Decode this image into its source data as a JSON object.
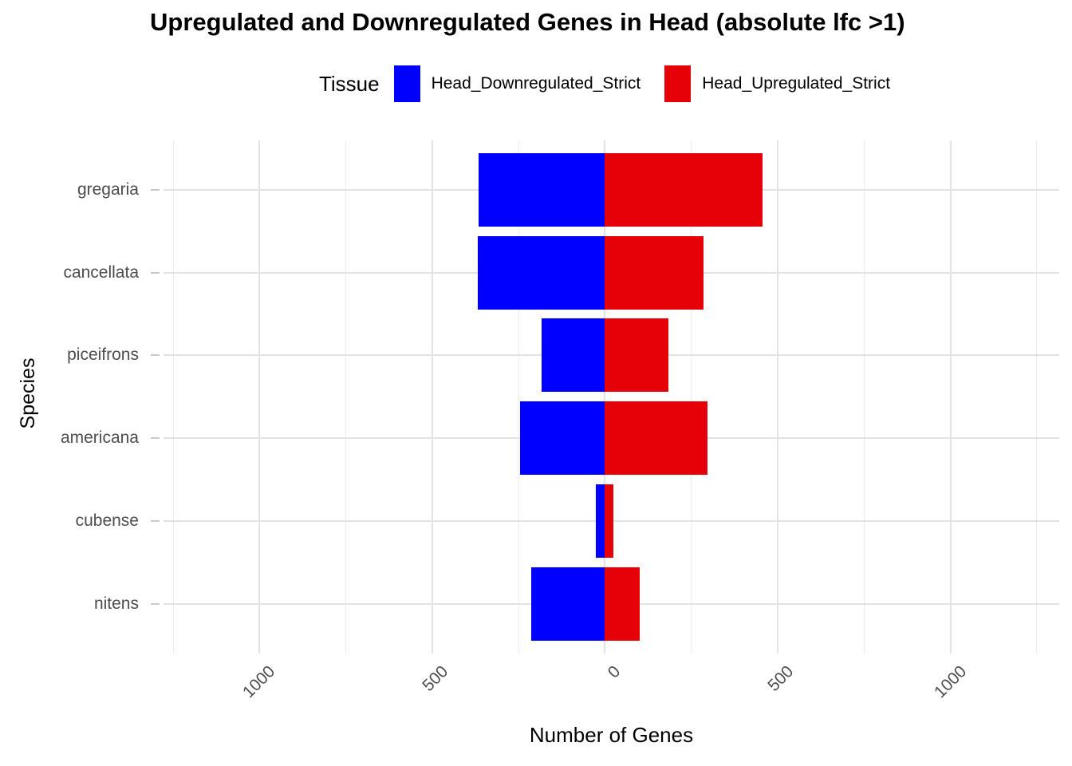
{
  "title": "Upregulated and Downregulated Genes in Head (absolute lfc >1)",
  "legend": {
    "title": "Tissue",
    "items": [
      {
        "label": "Head_Downregulated_Strict",
        "color": "#0000FF"
      },
      {
        "label": "Head_Upregulated_Strict",
        "color": "#E60008"
      }
    ]
  },
  "chart_data": {
    "type": "bar",
    "variant": "horizontal-diverging",
    "title": "Upregulated and Downregulated Genes in Head (absolute lfc >1)",
    "xlabel": "Number of Genes",
    "ylabel": "Species",
    "categories": [
      "gregaria",
      "cancellata",
      "piceifrons",
      "americana",
      "cubense",
      "nitens"
    ],
    "series": [
      {
        "name": "Head_Downregulated_Strict",
        "color": "#0000FF",
        "direction": "negative",
        "values": [
          366,
          368,
          184,
          246,
          27,
          214
        ]
      },
      {
        "name": "Head_Upregulated_Strict",
        "color": "#E60008",
        "direction": "positive",
        "values": [
          456,
          285,
          183,
          296,
          25,
          100
        ]
      }
    ],
    "x_axis": {
      "tick_values": [
        -1000,
        -500,
        0,
        500,
        1000
      ],
      "tick_labels": [
        "1000",
        "500",
        "0",
        "500",
        "1000"
      ],
      "range": [
        -1278,
        1315
      ],
      "minor_step": 250
    },
    "grid": true,
    "legend_position": "top",
    "bar_colors": {
      "down": "#0000FF",
      "up": "#E60008"
    }
  }
}
